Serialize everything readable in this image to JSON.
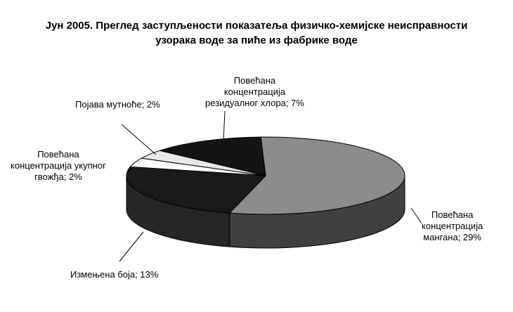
{
  "chart_data": {
    "type": "pie",
    "title": [
      "Јун 2005. Преглед заступљености показатеља физичко-хемијске неисправности",
      "узорака воде за пиће из фабрике воде"
    ],
    "slices": [
      {
        "value": 29,
        "label": [
          "Повећана",
          "концентрација",
          "мангана; 29%"
        ],
        "color": "#8c8c8c"
      },
      {
        "value": 13,
        "label": [
          "Измењена боја; 13%"
        ],
        "color": "#1a1a1a"
      },
      {
        "value": 2,
        "label": [
          "Повећана",
          "концентрација укупног",
          "гвожђа; 2%"
        ],
        "color": "#ffffff"
      },
      {
        "value": 2,
        "label": [
          "Појава мутноће; 2%"
        ],
        "color": "#e8e8e8"
      },
      {
        "value": 7,
        "label": [
          "Повећана",
          "концентрација",
          "резидуалног хлора; 7%"
        ],
        "color": "#141414"
      }
    ],
    "3d": true,
    "legend": "none"
  }
}
